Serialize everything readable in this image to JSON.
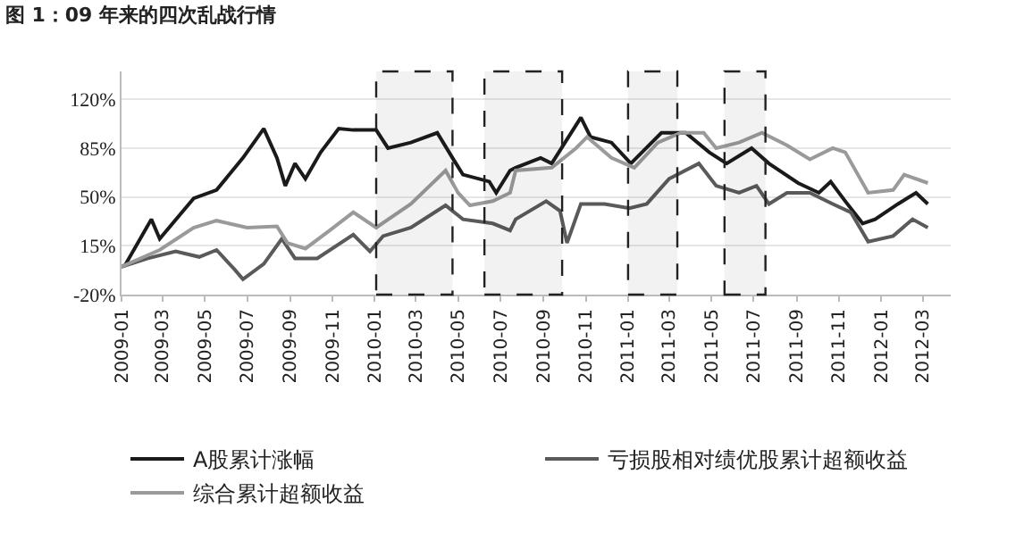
{
  "chart_data": {
    "type": "line",
    "title": "图 1：09 年来的四次乱战行情",
    "xlim": [
      "2009-01-01",
      "2012-04-10"
    ],
    "xticks": [
      "2009-01",
      "2009-03",
      "2009-05",
      "2009-07",
      "2009-09",
      "2009-11",
      "2010-01",
      "2010-03",
      "2010-05",
      "2010-07",
      "2010-09",
      "2010-11",
      "2011-01",
      "2011-03",
      "2011-05",
      "2011-07",
      "2011-09",
      "2011-11",
      "2012-01",
      "2012-03"
    ],
    "ylim": [
      -20,
      140
    ],
    "yticks": [
      {
        "value": -20,
        "label": "-20%"
      },
      {
        "value": 15,
        "label": "15%"
      },
      {
        "value": 50,
        "label": "50%"
      },
      {
        "value": 85,
        "label": "85%"
      },
      {
        "value": 120,
        "label": "120%"
      }
    ],
    "grid": "y",
    "legend": "bottom",
    "line_style": "solid",
    "marker": "none",
    "bands": [
      {
        "axis": "x",
        "from": "2010-01-03",
        "to": "2010-04-23",
        "color": "#222222"
      },
      {
        "axis": "x",
        "from": "2010-06-08",
        "to": "2010-09-28",
        "color": "#222222"
      },
      {
        "axis": "x",
        "from": "2011-01-01",
        "to": "2011-03-13",
        "color": "#222222"
      },
      {
        "axis": "x",
        "from": "2011-05-20",
        "to": "2011-07-18",
        "color": "#222222"
      }
    ],
    "series": [
      {
        "name": "A股累计涨幅",
        "color": "#1a1a1a",
        "x": [
          "2009-01-01",
          "2009-01-06",
          "2009-02-13",
          "2009-02-25",
          "2009-04-15",
          "2009-05-18",
          "2009-06-25",
          "2009-07-25",
          "2009-08-13",
          "2009-08-25",
          "2009-09-08",
          "2009-09-23",
          "2009-10-15",
          "2009-11-10",
          "2009-12-01",
          "2010-01-03",
          "2010-01-20",
          "2010-02-22",
          "2010-04-01",
          "2010-04-23",
          "2010-05-08",
          "2010-06-15",
          "2010-06-25",
          "2010-07-15",
          "2010-07-23",
          "2010-08-28",
          "2010-09-13",
          "2010-10-25",
          "2010-11-08",
          "2010-12-08",
          "2011-01-05",
          "2011-02-18",
          "2011-03-25",
          "2011-04-28",
          "2011-05-23",
          "2011-06-28",
          "2011-07-23",
          "2011-09-03",
          "2011-10-03",
          "2011-10-20",
          "2011-11-10",
          "2011-12-05",
          "2011-12-23",
          "2012-01-25",
          "2012-02-20",
          "2012-03-08"
        ],
        "values": [
          0,
          1,
          34,
          20,
          49,
          55,
          78,
          99,
          78,
          58,
          74,
          63,
          82,
          99,
          98,
          98,
          85,
          89,
          96,
          78,
          66,
          61,
          53,
          69,
          71,
          78,
          74,
          107,
          93,
          89,
          74,
          96,
          96,
          82,
          74,
          85,
          74,
          60,
          53,
          61,
          47,
          31,
          34,
          45,
          53,
          45
        ]
      },
      {
        "name": "亏损股相对绩优股累计超额收益",
        "color": "#5a5a5a",
        "x": [
          "2009-01-01",
          "2009-02-08",
          "2009-03-20",
          "2009-04-23",
          "2009-05-18",
          "2009-06-13",
          "2009-06-25",
          "2009-07-25",
          "2009-08-20",
          "2009-09-08",
          "2009-10-10",
          "2009-12-01",
          "2009-12-25",
          "2010-01-13",
          "2010-02-22",
          "2010-04-13",
          "2010-05-08",
          "2010-06-20",
          "2010-07-15",
          "2010-07-23",
          "2010-09-05",
          "2010-09-25",
          "2010-10-05",
          "2010-10-25",
          "2010-11-28",
          "2011-01-03",
          "2011-01-28",
          "2011-03-01",
          "2011-04-13",
          "2011-05-08",
          "2011-06-10",
          "2011-07-05",
          "2011-07-23",
          "2011-08-18",
          "2011-09-20",
          "2011-10-23",
          "2011-11-18",
          "2011-12-13",
          "2012-01-18",
          "2012-02-15",
          "2012-03-08"
        ],
        "values": [
          0,
          6,
          11,
          7,
          12,
          -2,
          -9,
          2,
          20,
          6,
          6,
          23,
          11,
          22,
          28,
          44,
          34,
          31,
          26,
          34,
          47,
          40,
          17,
          45,
          45,
          42,
          45,
          63,
          74,
          58,
          53,
          58,
          45,
          53,
          53,
          45,
          39,
          18,
          22,
          34,
          28
        ]
      },
      {
        "name": "综合累计超额收益",
        "color": "#9a9a9a",
        "x": [
          "2009-01-01",
          "2009-02-25",
          "2009-04-15",
          "2009-05-18",
          "2009-07-01",
          "2009-08-13",
          "2009-08-28",
          "2009-09-23",
          "2009-10-28",
          "2009-12-01",
          "2010-01-03",
          "2010-02-22",
          "2010-04-13",
          "2010-05-01",
          "2010-05-18",
          "2010-06-20",
          "2010-07-15",
          "2010-07-23",
          "2010-09-13",
          "2010-10-18",
          "2010-11-03",
          "2010-12-08",
          "2011-01-10",
          "2011-02-13",
          "2011-03-18",
          "2011-04-20",
          "2011-05-08",
          "2011-06-10",
          "2011-07-13",
          "2011-08-18",
          "2011-09-20",
          "2011-10-23",
          "2011-11-10",
          "2011-12-13",
          "2012-01-18",
          "2012-02-03",
          "2012-03-08"
        ],
        "values": [
          0,
          12,
          28,
          33,
          28,
          29,
          17,
          13,
          26,
          39,
          28,
          45,
          69,
          53,
          44,
          47,
          53,
          69,
          71,
          85,
          93,
          78,
          71,
          89,
          96,
          96,
          85,
          89,
          96,
          87,
          77,
          85,
          82,
          53,
          55,
          66,
          60
        ]
      }
    ]
  }
}
